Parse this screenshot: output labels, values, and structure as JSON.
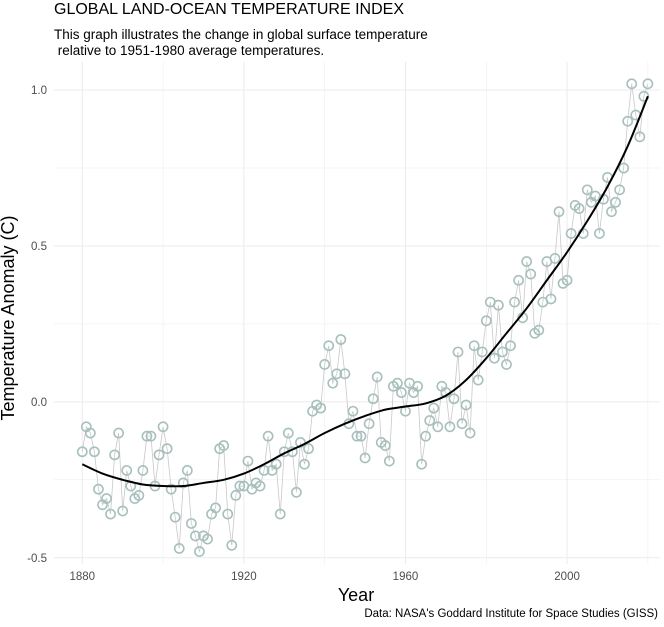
{
  "chart_data": {
    "type": "line",
    "title": "GLOBAL LAND-OCEAN TEMPERATURE INDEX",
    "subtitle": "This graph illustrates the change in global surface temperature\n relative to 1951-1980 average temperatures.",
    "xlabel": "Year",
    "ylabel": "Temperature Anomaly (C)",
    "caption": "Data: NASA's Goddard Institute for Space Studies (GISS)",
    "xlim": [
      1873,
      2023
    ],
    "ylim": [
      -0.52,
      1.09
    ],
    "xticks": [
      1880,
      1920,
      1960,
      2000
    ],
    "yticks": [
      -0.5,
      0.0,
      0.5,
      1.0
    ],
    "ytick_labels": [
      "-0.5",
      "0.0",
      "0.5",
      "1.0"
    ],
    "grid": true,
    "colors": {
      "points": "#a7c0bd",
      "connector": "#c8c8c8",
      "smooth": "#000000",
      "grid": "#ebebeb"
    },
    "series": [
      {
        "style": "points-connected",
        "x": [
          1880,
          1881,
          1882,
          1883,
          1884,
          1885,
          1886,
          1887,
          1888,
          1889,
          1890,
          1891,
          1892,
          1893,
          1894,
          1895,
          1896,
          1897,
          1898,
          1899,
          1900,
          1901,
          1902,
          1903,
          1904,
          1905,
          1906,
          1907,
          1908,
          1909,
          1910,
          1911,
          1912,
          1913,
          1914,
          1915,
          1916,
          1917,
          1918,
          1919,
          1920,
          1921,
          1922,
          1923,
          1924,
          1925,
          1926,
          1927,
          1928,
          1929,
          1930,
          1931,
          1932,
          1933,
          1934,
          1935,
          1936,
          1937,
          1938,
          1939,
          1940,
          1941,
          1942,
          1943,
          1944,
          1945,
          1946,
          1947,
          1948,
          1949,
          1950,
          1951,
          1952,
          1953,
          1954,
          1955,
          1956,
          1957,
          1958,
          1959,
          1960,
          1961,
          1962,
          1963,
          1964,
          1965,
          1966,
          1967,
          1968,
          1969,
          1970,
          1971,
          1972,
          1973,
          1974,
          1975,
          1976,
          1977,
          1978,
          1979,
          1980,
          1981,
          1982,
          1983,
          1984,
          1985,
          1986,
          1987,
          1988,
          1989,
          1990,
          1991,
          1992,
          1993,
          1994,
          1995,
          1996,
          1997,
          1998,
          1999,
          2000,
          2001,
          2002,
          2003,
          2004,
          2005,
          2006,
          2007,
          2008,
          2009,
          2010,
          2011,
          2012,
          2013,
          2014,
          2015,
          2016,
          2017,
          2018,
          2019,
          2020
        ],
        "y": [
          -0.16,
          -0.08,
          -0.1,
          -0.16,
          -0.28,
          -0.33,
          -0.31,
          -0.36,
          -0.17,
          -0.1,
          -0.35,
          -0.22,
          -0.27,
          -0.31,
          -0.3,
          -0.22,
          -0.11,
          -0.11,
          -0.27,
          -0.17,
          -0.08,
          -0.15,
          -0.28,
          -0.37,
          -0.47,
          -0.26,
          -0.22,
          -0.39,
          -0.43,
          -0.48,
          -0.43,
          -0.44,
          -0.36,
          -0.34,
          -0.15,
          -0.14,
          -0.36,
          -0.46,
          -0.3,
          -0.27,
          -0.27,
          -0.19,
          -0.28,
          -0.26,
          -0.27,
          -0.22,
          -0.11,
          -0.22,
          -0.2,
          -0.36,
          -0.16,
          -0.1,
          -0.16,
          -0.29,
          -0.13,
          -0.2,
          -0.15,
          -0.03,
          -0.01,
          -0.02,
          0.12,
          0.18,
          0.06,
          0.09,
          0.2,
          0.09,
          -0.07,
          -0.03,
          -0.11,
          -0.11,
          -0.18,
          -0.07,
          0.01,
          0.08,
          -0.13,
          -0.14,
          -0.19,
          0.05,
          0.06,
          0.03,
          -0.03,
          0.06,
          0.03,
          0.05,
          -0.2,
          -0.11,
          -0.06,
          -0.02,
          -0.08,
          0.05,
          0.03,
          -0.08,
          0.01,
          0.16,
          -0.07,
          -0.01,
          -0.1,
          0.18,
          0.07,
          0.16,
          0.26,
          0.32,
          0.14,
          0.31,
          0.16,
          0.12,
          0.18,
          0.32,
          0.39,
          0.27,
          0.45,
          0.41,
          0.22,
          0.23,
          0.32,
          0.45,
          0.33,
          0.46,
          0.61,
          0.38,
          0.39,
          0.54,
          0.63,
          0.62,
          0.54,
          0.68,
          0.64,
          0.66,
          0.54,
          0.65,
          0.72,
          0.61,
          0.64,
          0.68,
          0.75,
          0.9,
          1.02,
          0.92,
          0.85,
          0.98,
          1.02
        ]
      },
      {
        "style": "smooth",
        "x": [
          1880,
          1885,
          1890,
          1895,
          1900,
          1905,
          1910,
          1915,
          1920,
          1925,
          1930,
          1935,
          1940,
          1945,
          1950,
          1955,
          1960,
          1965,
          1970,
          1975,
          1980,
          1985,
          1990,
          1995,
          2000,
          2005,
          2010,
          2015,
          2020
        ],
        "y": [
          -0.2,
          -0.23,
          -0.25,
          -0.265,
          -0.27,
          -0.27,
          -0.26,
          -0.25,
          -0.23,
          -0.2,
          -0.165,
          -0.135,
          -0.1,
          -0.07,
          -0.045,
          -0.025,
          -0.015,
          -0.005,
          0.02,
          0.07,
          0.14,
          0.22,
          0.3,
          0.39,
          0.48,
          0.58,
          0.69,
          0.82,
          0.98
        ]
      }
    ]
  }
}
